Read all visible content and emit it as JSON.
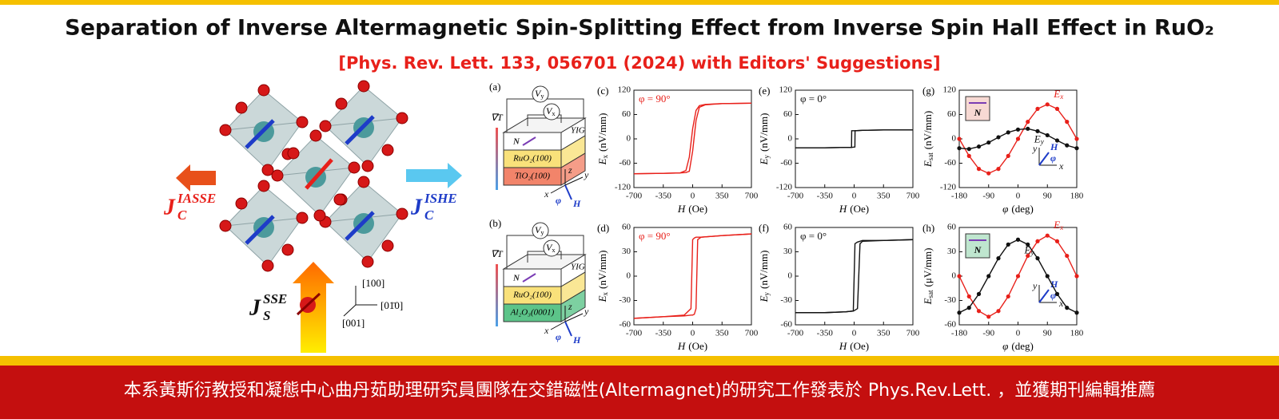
{
  "header": {
    "title": "Separation of Inverse Altermagnetic Spin-Splitting Effect from Inverse Spin Hall Effect in RuO₂",
    "subtitle": "[Phys. Rev. Lett. 133, 056701 (2024) with Editors' Suggestions]"
  },
  "illustration": {
    "labels": [
      {
        "symbol": "J",
        "sub": "C",
        "sup": "IASSE",
        "color": "#e8201a"
      },
      {
        "symbol": "J",
        "sub": "C",
        "sup": "ISHE",
        "color": "#1e3cc8"
      },
      {
        "symbol": "J",
        "sub": "S",
        "sup": "SSE",
        "color": "#111111"
      }
    ],
    "crystal_axes": [
      "[100]",
      "[01̄0]",
      "[001]"
    ]
  },
  "schematics": [
    {
      "panel": "(a)",
      "gradient": "∇T",
      "voltmeters": [
        {
          "symbol": "V",
          "sub": "y"
        },
        {
          "symbol": "V",
          "sub": "x"
        }
      ],
      "layers": [
        "YIG",
        "RuO₂(100)",
        "TiO₂(100)"
      ],
      "substrate_color": "#f2846a",
      "vector": "N",
      "axes": [
        "z",
        "x",
        "y",
        "φ",
        "H"
      ]
    },
    {
      "panel": "(b)",
      "gradient": "∇T",
      "voltmeters": [
        {
          "symbol": "V",
          "sub": "y"
        },
        {
          "symbol": "V",
          "sub": "x"
        }
      ],
      "layers": [
        "YIG",
        "RuO₂(100)",
        "Al₂O₃(0001)"
      ],
      "substrate_color": "#5cc489",
      "vector": "N",
      "axes": [
        "z",
        "x",
        "y",
        "φ",
        "H"
      ]
    }
  ],
  "chart_data": [
    {
      "type": "line",
      "panel": "(c)",
      "annotation": "φ = 90°",
      "annotation_color": "#e8201a",
      "xlabel": {
        "symbol": "H",
        "unit": "(Oe)"
      },
      "ylabel": {
        "symbol": "E",
        "sub": "x",
        "unit": "(nV/mm)"
      },
      "x": [
        -700,
        -350,
        -150,
        -80,
        -40,
        0,
        40,
        80,
        150,
        350,
        700
      ],
      "series": [
        {
          "color": "#e8201a",
          "values": [
            -86,
            -85,
            -84,
            -83,
            -80,
            -30,
            45,
            78,
            84,
            87,
            88
          ]
        },
        {
          "color": "#e8201a",
          "values": [
            -86,
            -85,
            -84,
            -78,
            -45,
            25,
            70,
            82,
            85,
            87,
            88
          ]
        }
      ],
      "xlim": [
        -700,
        700
      ],
      "xticks": [
        -700,
        -350,
        0,
        350,
        700
      ],
      "ylim": [
        -120,
        120
      ],
      "yticks": [
        -120,
        -60,
        0,
        60,
        120
      ]
    },
    {
      "type": "line",
      "panel": "(e)",
      "annotation": "φ = 0°",
      "annotation_color": "#111111",
      "xlabel": {
        "symbol": "H",
        "unit": "(Oe)"
      },
      "ylabel": {
        "symbol": "E",
        "sub": "y",
        "unit": "(nV/mm)"
      },
      "x": [
        -700,
        -350,
        -100,
        -31,
        -29,
        9,
        11,
        100,
        350,
        700
      ],
      "series": [
        {
          "color": "#111111",
          "values": [
            -22,
            -22,
            -21,
            -21,
            -21,
            -20,
            20,
            21,
            22,
            22
          ]
        },
        {
          "color": "#111111",
          "values": [
            -22,
            -22,
            -21,
            -21,
            20,
            20,
            20,
            21,
            22,
            22
          ]
        }
      ],
      "xlim": [
        -700,
        700
      ],
      "xticks": [
        -700,
        -350,
        0,
        350,
        700
      ],
      "ylim": [
        -120,
        120
      ],
      "yticks": [
        -120,
        -60,
        0,
        60,
        120
      ]
    },
    {
      "type": "line",
      "panel": "(g)",
      "markers": true,
      "inset": {
        "vector": "N",
        "fill": "#f7d9d3",
        "axes": [
          "y",
          "H",
          "φ",
          "x"
        ]
      },
      "xlabel": {
        "symbol": "φ",
        "unit": "(deg)"
      },
      "ylabel": {
        "symbol": "E",
        "sub": "sat",
        "unit": "(nV/mm)"
      },
      "x": [
        -180,
        -150,
        -120,
        -90,
        -60,
        -30,
        0,
        30,
        60,
        90,
        120,
        150,
        180
      ],
      "series": [
        {
          "name": "Ex",
          "color": "#e8201a",
          "values": [
            0,
            -42,
            -74,
            -85,
            -74,
            -42,
            0,
            42,
            74,
            85,
            74,
            42,
            0
          ]
        },
        {
          "name": "Ey",
          "color": "#111111",
          "values": [
            -23,
            -25,
            -19,
            -9,
            4,
            16,
            23,
            25,
            19,
            9,
            -4,
            -16,
            -23
          ]
        }
      ],
      "xlim": [
        -180,
        180
      ],
      "xticks": [
        -180,
        -90,
        0,
        90,
        180
      ],
      "ylim": [
        -120,
        120
      ],
      "yticks": [
        -120,
        -60,
        0,
        60,
        120
      ]
    },
    {
      "type": "line",
      "panel": "(d)",
      "annotation": "φ = 90°",
      "annotation_color": "#e8201a",
      "xlabel": {
        "symbol": "H",
        "unit": "(Oe)"
      },
      "ylabel": {
        "symbol": "E",
        "sub": "x",
        "unit": "(nV/mm)"
      },
      "x": [
        -700,
        -350,
        -100,
        -20,
        0,
        20,
        40,
        60,
        100,
        350,
        700
      ],
      "series": [
        {
          "color": "#e8201a",
          "values": [
            -52,
            -50,
            -49,
            -48,
            -48,
            -47,
            -40,
            45,
            48,
            50,
            52
          ]
        },
        {
          "color": "#e8201a",
          "values": [
            -52,
            -50,
            -48,
            -40,
            45,
            47,
            48,
            48,
            48,
            50,
            52
          ]
        }
      ],
      "xlim": [
        -700,
        700
      ],
      "xticks": [
        -700,
        -350,
        0,
        350,
        700
      ],
      "ylim": [
        -60,
        60
      ],
      "yticks": [
        -60,
        -30,
        0,
        30,
        60
      ]
    },
    {
      "type": "line",
      "panel": "(f)",
      "annotation": "φ = 0°",
      "annotation_color": "#111111",
      "xlabel": {
        "symbol": "H",
        "unit": "(Oe)"
      },
      "ylabel": {
        "symbol": "E",
        "sub": "y",
        "unit": "(nV/mm)"
      },
      "x": [
        -700,
        -350,
        -100,
        -10,
        10,
        40,
        70,
        100,
        350,
        700
      ],
      "series": [
        {
          "color": "#111111",
          "values": [
            -45,
            -45,
            -44,
            -43,
            -42,
            -40,
            40,
            43,
            44,
            45
          ]
        },
        {
          "color": "#111111",
          "values": [
            -45,
            -45,
            -44,
            -43,
            40,
            42,
            43,
            44,
            44,
            45
          ]
        }
      ],
      "xlim": [
        -700,
        700
      ],
      "xticks": [
        -700,
        -350,
        0,
        350,
        700
      ],
      "ylim": [
        -60,
        60
      ],
      "yticks": [
        -60,
        -30,
        0,
        30,
        60
      ]
    },
    {
      "type": "line",
      "panel": "(h)",
      "markers": true,
      "inset": {
        "vector": "N",
        "fill": "#bfe6cf",
        "axes": [
          "y",
          "H",
          "φ",
          "x"
        ]
      },
      "xlabel": {
        "symbol": "φ",
        "unit": "(deg)"
      },
      "ylabel": {
        "symbol": "E",
        "sub": "sat",
        "unit": "(μV/mm)"
      },
      "x": [
        -180,
        -150,
        -120,
        -90,
        -60,
        -30,
        0,
        30,
        60,
        90,
        120,
        150,
        180
      ],
      "series": [
        {
          "name": "Ex",
          "color": "#e8201a",
          "values": [
            0,
            -25,
            -43,
            -50,
            -43,
            -25,
            0,
            25,
            43,
            50,
            43,
            25,
            0
          ]
        },
        {
          "name": "Ey",
          "color": "#111111",
          "values": [
            -45,
            -39,
            -22,
            0,
            22,
            39,
            45,
            39,
            22,
            0,
            -22,
            -39,
            -45
          ]
        }
      ],
      "xlim": [
        -180,
        180
      ],
      "xticks": [
        -180,
        -90,
        0,
        90,
        180
      ],
      "ylim": [
        -60,
        60
      ],
      "yticks": [
        -60,
        -30,
        0,
        30,
        60
      ]
    }
  ],
  "footer": {
    "text": "本系黃斯衍教授和凝態中心曲丹茹助理研究員團隊在交錯磁性(Altermagnet)的研究工作發表於 Phys.Rev.Lett. ，並獲期刊編輯推薦"
  }
}
